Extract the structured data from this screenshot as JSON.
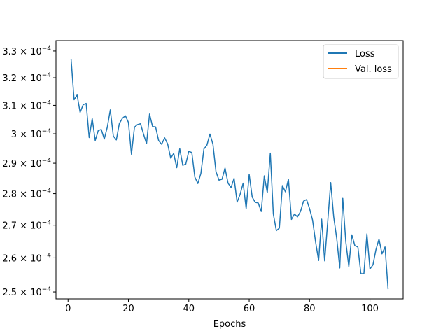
{
  "chart_data": {
    "type": "line",
    "title": "",
    "xlabel": "Epochs",
    "ylabel": "",
    "yscale": "log",
    "xlim": [
      -4,
      111
    ],
    "ylim": [
      0.000248,
      0.000334
    ],
    "x_ticks": [
      0,
      20,
      40,
      60,
      80,
      100
    ],
    "y_ticks": [
      {
        "value": 0.00025,
        "mantissa": "2.5"
      },
      {
        "value": 0.00026,
        "mantissa": "2.6"
      },
      {
        "value": 0.00027,
        "mantissa": "2.7"
      },
      {
        "value": 0.00028,
        "mantissa": "2.8"
      },
      {
        "value": 0.00029,
        "mantissa": "2.9"
      },
      {
        "value": 0.0003,
        "mantissa": "3"
      },
      {
        "value": 0.00031,
        "mantissa": "3.1"
      },
      {
        "value": 0.00032,
        "mantissa": "3.2"
      },
      {
        "value": 0.00033,
        "mantissa": "3.3"
      }
    ],
    "y_tick_suffix": "× 10",
    "y_tick_exponent": "−4",
    "grid": false,
    "legend_position": "top-right",
    "colors": {
      "Loss": "#1f77b4",
      "Val. loss": "#ff7f0e"
    },
    "series": [
      {
        "name": "Loss",
        "x": [
          1,
          2,
          3,
          4,
          5,
          6,
          7,
          8,
          9,
          10,
          11,
          12,
          13,
          14,
          15,
          16,
          17,
          18,
          19,
          20,
          21,
          22,
          23,
          24,
          25,
          26,
          27,
          28,
          29,
          30,
          31,
          32,
          33,
          34,
          35,
          36,
          37,
          38,
          39,
          40,
          41,
          42,
          43,
          44,
          45,
          46,
          47,
          48,
          49,
          50,
          51,
          52,
          53,
          54,
          55,
          56,
          57,
          58,
          59,
          60,
          61,
          62,
          63,
          64,
          65,
          66,
          67,
          68,
          69,
          70,
          71,
          72,
          73,
          74,
          75,
          76,
          77,
          78,
          79,
          80,
          81,
          82,
          83,
          84,
          85,
          86,
          87,
          88,
          89,
          90,
          91,
          92,
          93,
          94,
          95,
          96,
          97,
          98,
          99,
          100,
          101,
          102,
          103,
          104,
          105,
          106
        ],
        "values": [
          0.000327,
          0.000312,
          0.0003137,
          0.0003075,
          0.0003102,
          0.0003107,
          0.0002987,
          0.0003053,
          0.0002977,
          0.0003011,
          0.0003015,
          0.0002982,
          0.0003023,
          0.0003084,
          0.0002992,
          0.0002979,
          0.0003036,
          0.0003054,
          0.0003063,
          0.000304,
          0.000293,
          0.0003023,
          0.0003032,
          0.0003035,
          0.0002999,
          0.0002966,
          0.0003069,
          0.0003025,
          0.0003024,
          0.0002977,
          0.0002964,
          0.0002986,
          0.0002965,
          0.0002917,
          0.0002933,
          0.0002885,
          0.0002949,
          0.0002893,
          0.0002897,
          0.000294,
          0.0002936,
          0.0002854,
          0.0002833,
          0.0002866,
          0.0002948,
          0.0002961,
          0.0002999,
          0.0002964,
          0.0002872,
          0.0002844,
          0.0002847,
          0.0002884,
          0.0002834,
          0.000282,
          0.000285,
          0.0002773,
          0.0002798,
          0.0002834,
          0.0002752,
          0.0002863,
          0.0002789,
          0.0002772,
          0.000277,
          0.0002743,
          0.0002858,
          0.0002803,
          0.0002934,
          0.0002735,
          0.0002683,
          0.0002691,
          0.0002826,
          0.0002806,
          0.0002847,
          0.0002718,
          0.0002735,
          0.0002726,
          0.0002743,
          0.0002776,
          0.0002781,
          0.0002752,
          0.0002716,
          0.0002648,
          0.0002592,
          0.0002719,
          0.0002591,
          0.0002709,
          0.0002836,
          0.0002726,
          0.0002659,
          0.000257,
          0.0002785,
          0.0002649,
          0.0002574,
          0.000267,
          0.0002637,
          0.0002633,
          0.0002553,
          0.0002553,
          0.0002673,
          0.0002567,
          0.0002579,
          0.0002625,
          0.0002657,
          0.0002612,
          0.0002633,
          0.0002508
        ]
      },
      {
        "name": "Val. loss",
        "x": [],
        "values": []
      }
    ]
  }
}
